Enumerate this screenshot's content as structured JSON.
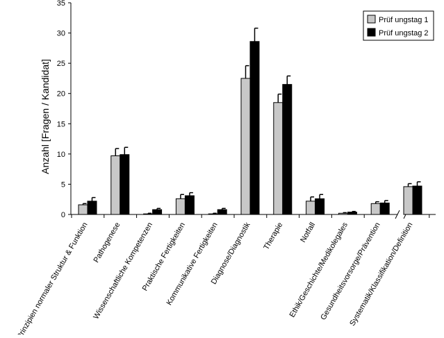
{
  "chart_data": {
    "type": "bar",
    "title": "",
    "xlabel": "",
    "ylabel": "Anzahl [Fragen / Kandidat]",
    "ylim": [
      0,
      35
    ],
    "yticks": [
      0,
      5,
      10,
      15,
      20,
      25,
      30,
      35
    ],
    "grid": false,
    "legend_position": "top-right",
    "axis_break_after_category": 9,
    "categories": [
      "Prinzipien normaler Struktur & Funktion",
      "Pathogenese",
      "Wissenschaftliche Kompetenzen",
      "Praktische Fertigkeiten",
      "Kommunikative Fertigkeiten",
      "Diagnose/Diagnostik",
      "Therapie",
      "Notfall",
      "Ethik/Geschichte/Medikolegales",
      "Gesundheitsvorsorge/Prävention",
      "Systematik/Klassifikation/Definition"
    ],
    "series": [
      {
        "name": "Prüf ungstag 1",
        "color": "#c8c8c8",
        "values": [
          1.6,
          9.7,
          0.1,
          2.6,
          0.1,
          22.5,
          18.5,
          2.2,
          0.2,
          1.8,
          4.6
        ],
        "errors": [
          0.2,
          1.2,
          0.1,
          0.7,
          0.1,
          2.1,
          1.4,
          0.7,
          0.1,
          0.3,
          0.5
        ]
      },
      {
        "name": "Prüf ungstag 2",
        "color": "#000000",
        "values": [
          2.2,
          9.9,
          0.8,
          3.1,
          0.8,
          28.6,
          21.5,
          2.6,
          0.4,
          1.9,
          4.7
        ],
        "errors": [
          0.6,
          1.2,
          0.2,
          0.5,
          0.2,
          2.2,
          1.4,
          0.7,
          0.1,
          0.4,
          0.7
        ]
      }
    ]
  }
}
